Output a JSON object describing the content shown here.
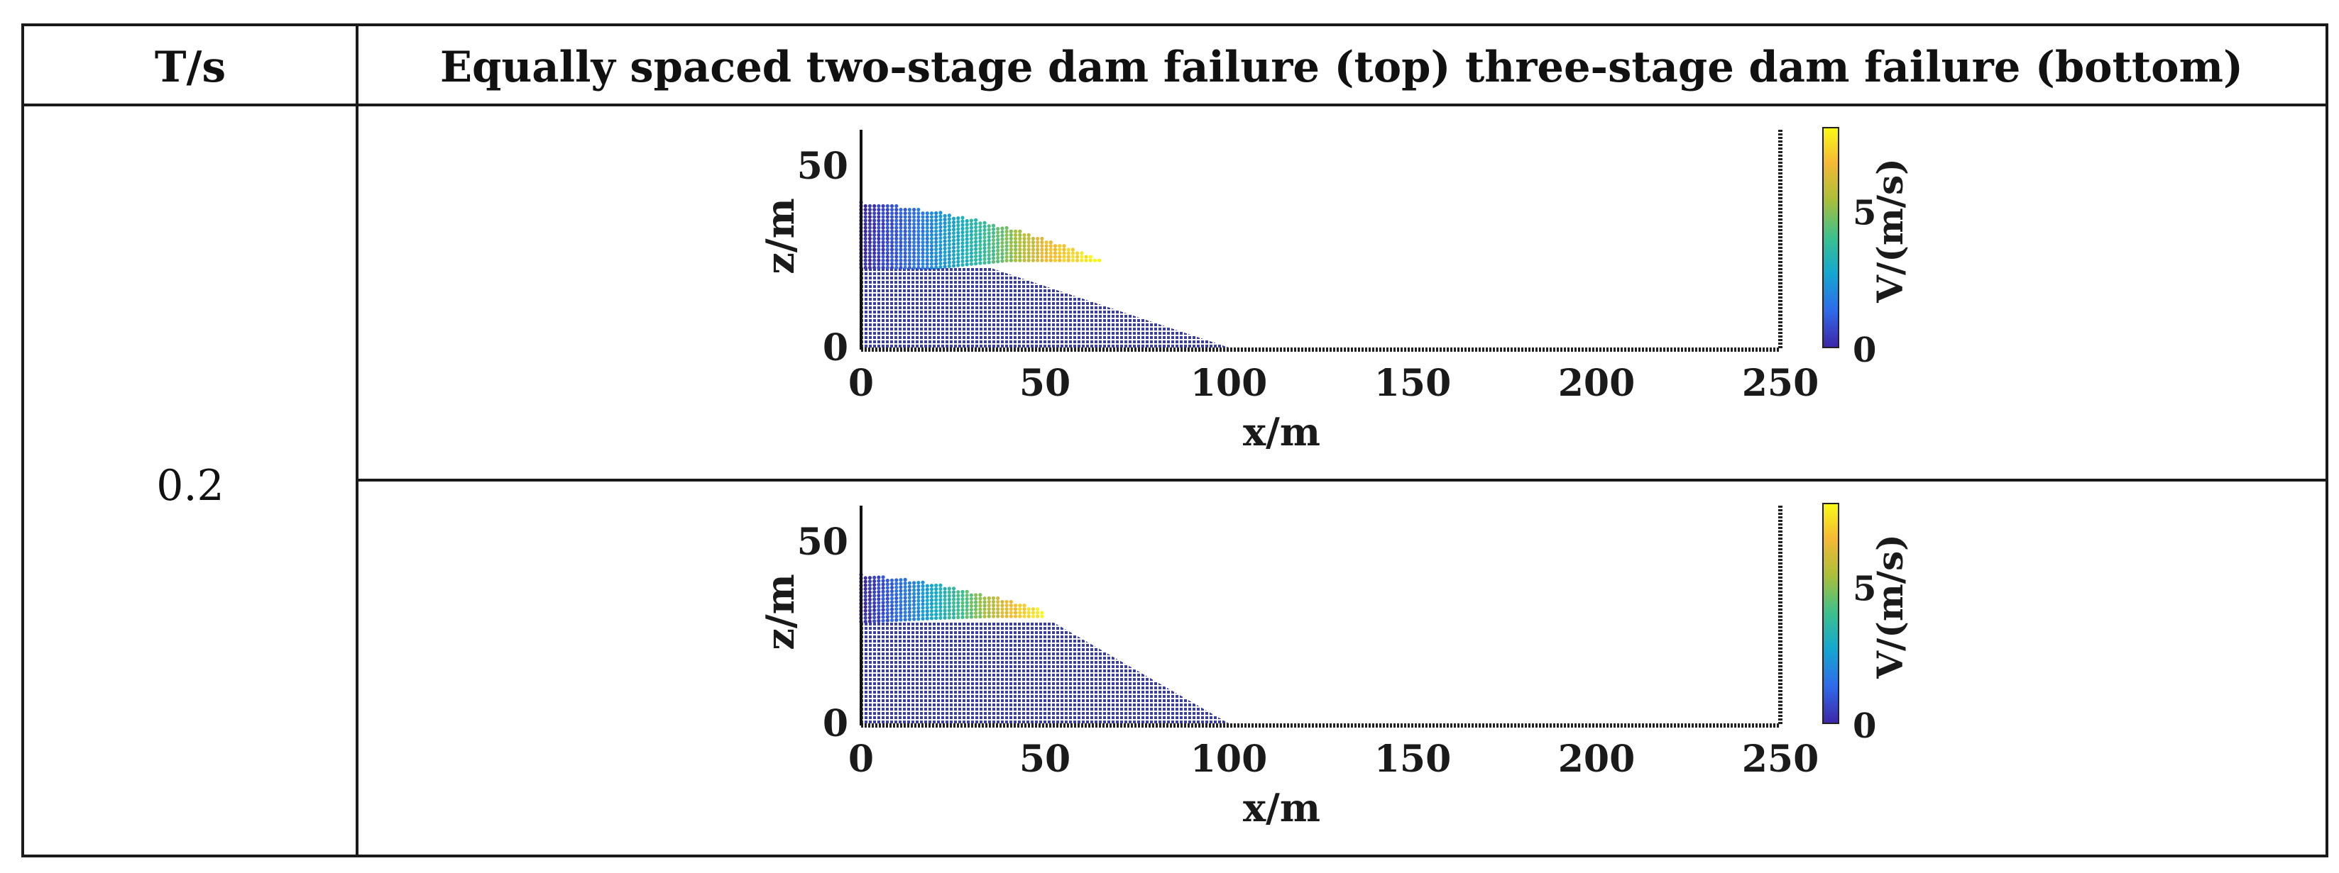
{
  "table": {
    "header_left": "T/s",
    "header_right": "Equally spaced two-stage dam failure (top) three-stage dam failure (bottom)",
    "row_value": "0.2"
  },
  "colors": {
    "grid_line": "#1a1a1a",
    "dam_body": "#3b3f9a",
    "colormap": [
      "#3e26a8",
      "#2f6bea",
      "#14a8cf",
      "#3cc08e",
      "#a9bf3a",
      "#f5b935",
      "#f9fb15"
    ]
  },
  "chart_data": [
    {
      "type": "scatter",
      "title": "",
      "xlabel": "x/m",
      "ylabel": "z/m",
      "xlim": [
        0,
        250
      ],
      "ylim": [
        0,
        60
      ],
      "xticks": [
        "0",
        "50",
        "100",
        "150",
        "200",
        "250"
      ],
      "yticks": [
        "0",
        "50"
      ],
      "colorbar": {
        "label": "V/(m/s)",
        "ticks": [
          "0",
          "5"
        ],
        "range": [
          0,
          8
        ]
      },
      "dam_profile": [
        [
          0,
          0
        ],
        [
          0,
          22
        ],
        [
          35,
          22
        ],
        [
          100,
          0
        ]
      ],
      "flow_top": [
        [
          0,
          40
        ],
        [
          10,
          39
        ],
        [
          20,
          37.5
        ],
        [
          30,
          35.5
        ],
        [
          40,
          33
        ],
        [
          50,
          30
        ],
        [
          58,
          27
        ],
        [
          65,
          24
        ]
      ],
      "flow_bottom": [
        [
          0,
          22
        ],
        [
          20,
          22
        ],
        [
          40,
          24
        ],
        [
          55,
          24
        ],
        [
          65,
          24
        ]
      ],
      "flow_velocity": [
        [
          0,
          0
        ],
        [
          20,
          2
        ],
        [
          35,
          4
        ],
        [
          50,
          6.5
        ],
        [
          65,
          8
        ]
      ],
      "grid": false,
      "legend": "none"
    },
    {
      "type": "scatter",
      "title": "",
      "xlabel": "x/m",
      "ylabel": "z/m",
      "xlim": [
        0,
        250
      ],
      "ylim": [
        0,
        60
      ],
      "xticks": [
        "0",
        "50",
        "100",
        "150",
        "200",
        "250"
      ],
      "yticks": [
        "0",
        "50"
      ],
      "colorbar": {
        "label": "V/(m/s)",
        "ticks": [
          "0",
          "5"
        ],
        "range": [
          0,
          8
        ]
      },
      "dam_profile": [
        [
          0,
          0
        ],
        [
          0,
          28
        ],
        [
          52,
          28
        ],
        [
          100,
          0
        ]
      ],
      "flow_top": [
        [
          0,
          41
        ],
        [
          10,
          40
        ],
        [
          20,
          38.5
        ],
        [
          30,
          36
        ],
        [
          40,
          34
        ],
        [
          50,
          31
        ]
      ],
      "flow_bottom": [
        [
          0,
          28
        ],
        [
          20,
          29
        ],
        [
          35,
          29.5
        ],
        [
          50,
          29.5
        ]
      ],
      "flow_velocity": [
        [
          0,
          0
        ],
        [
          15,
          2
        ],
        [
          30,
          4.5
        ],
        [
          40,
          6.5
        ],
        [
          50,
          8
        ]
      ],
      "grid": false,
      "legend": "none"
    }
  ]
}
